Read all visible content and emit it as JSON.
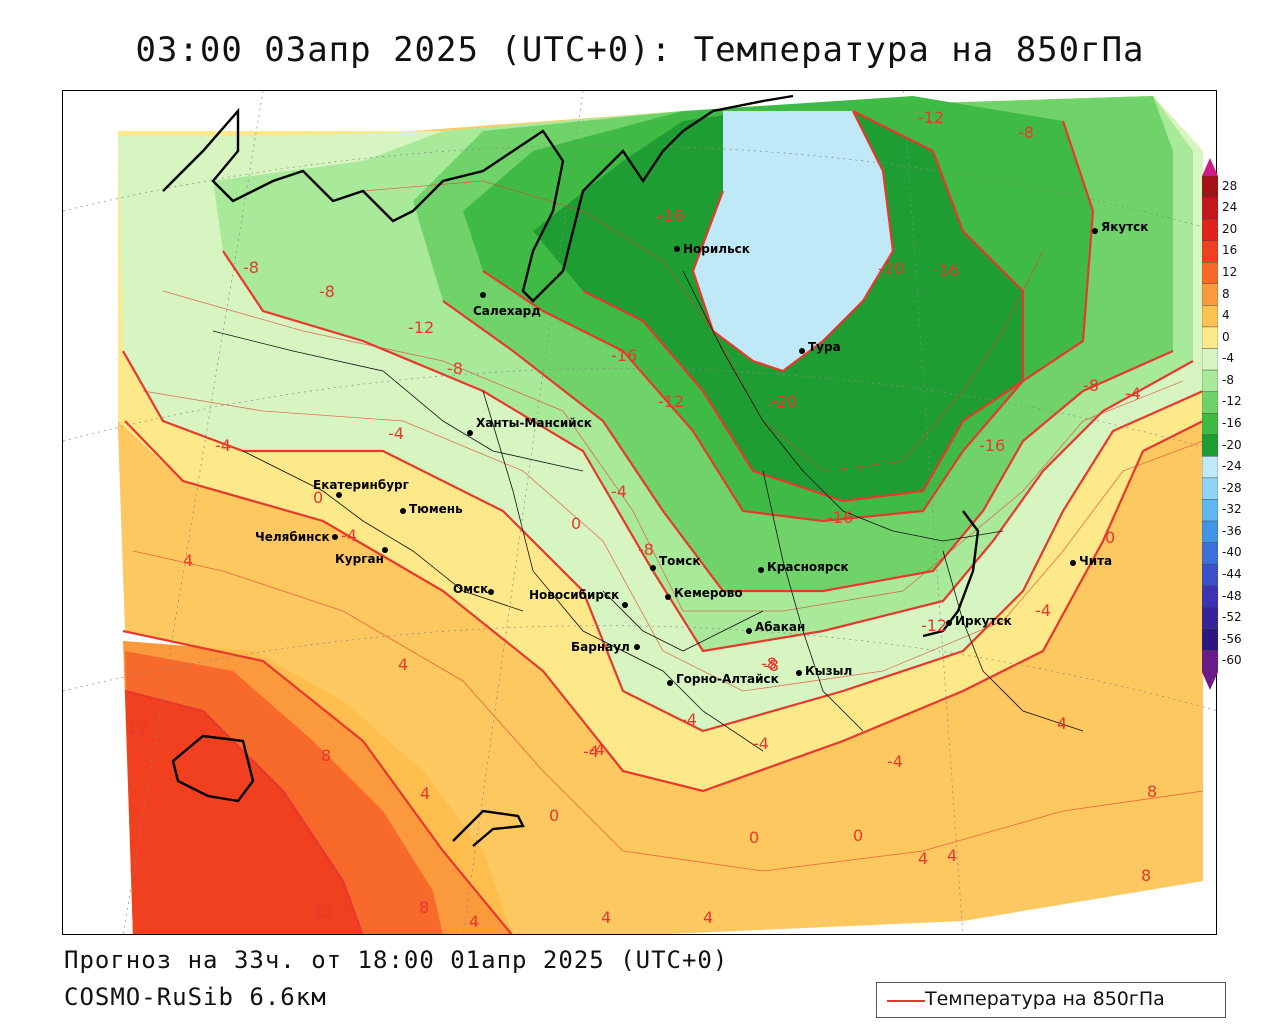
{
  "header": {
    "title": "03:00 03апр 2025 (UTC+0): Температура на 850гПа"
  },
  "footer": {
    "forecast": "Прогноз на 33ч. от 18:00 01апр 2025 (UTC+0)",
    "model": "COSMO-RuSib 6.6км"
  },
  "legend": {
    "label": "Температура на 850гПа",
    "line_color": "#e8382d"
  },
  "colorbar": {
    "levels": [
      "28",
      "24",
      "20",
      "16",
      "12",
      "8",
      "4",
      "0",
      "-4",
      "-8",
      "-12",
      "-16",
      "-20",
      "-24",
      "-28",
      "-32",
      "-36",
      "-40",
      "-44",
      "-48",
      "-52",
      "-56",
      "-60"
    ],
    "colors": [
      "#a50f15",
      "#c4161c",
      "#e0241c",
      "#f0401f",
      "#f76a2b",
      "#fb9a3c",
      "#fdc24f",
      "#fde88a",
      "#d7f5c0",
      "#a9e99a",
      "#6fd36a",
      "#3fbb45",
      "#1e9e32",
      "#bfe9f7",
      "#8fd3f5",
      "#5fb8ef",
      "#3f96e6",
      "#3a70d8",
      "#3b4fc8",
      "#3a33b4",
      "#35239c",
      "#2d1582",
      "#6b1a8a"
    ]
  },
  "cities": [
    {
      "name": "Норильск"
    },
    {
      "name": "Салехард"
    },
    {
      "name": "Тура"
    },
    {
      "name": "Якутск"
    },
    {
      "name": "Ханты-Мансийск"
    },
    {
      "name": "Екатеринбург"
    },
    {
      "name": "Тюмень"
    },
    {
      "name": "Челябинск"
    },
    {
      "name": "Курган"
    },
    {
      "name": "Омск"
    },
    {
      "name": "Новосибирск"
    },
    {
      "name": "Томск"
    },
    {
      "name": "Кемерово"
    },
    {
      "name": "Красноярск"
    },
    {
      "name": "Абакан"
    },
    {
      "name": "Барнаул"
    },
    {
      "name": "Горно-Алтайск"
    },
    {
      "name": "Кызыл"
    },
    {
      "name": "Иркутск"
    },
    {
      "name": "Чита"
    }
  ],
  "isotherm_labels": [
    "-12",
    "-8",
    "-16",
    "-8",
    "-8",
    "-12",
    "-16",
    "-20",
    "-16",
    "-20",
    "-16",
    "-12",
    "-8",
    "-4",
    "-4",
    "-4",
    "-8",
    "-16",
    "-4",
    "0",
    "-4",
    "4",
    "0",
    "0",
    "-8",
    "-4",
    "-4",
    "-4",
    "-4",
    "-8",
    "4",
    "12",
    "8",
    "4",
    "0",
    "4",
    "4",
    "8",
    "4",
    "4",
    "4",
    "0",
    "-4",
    "0",
    "4",
    "8",
    "8",
    "12",
    "-4",
    "-8",
    "-12"
  ]
}
